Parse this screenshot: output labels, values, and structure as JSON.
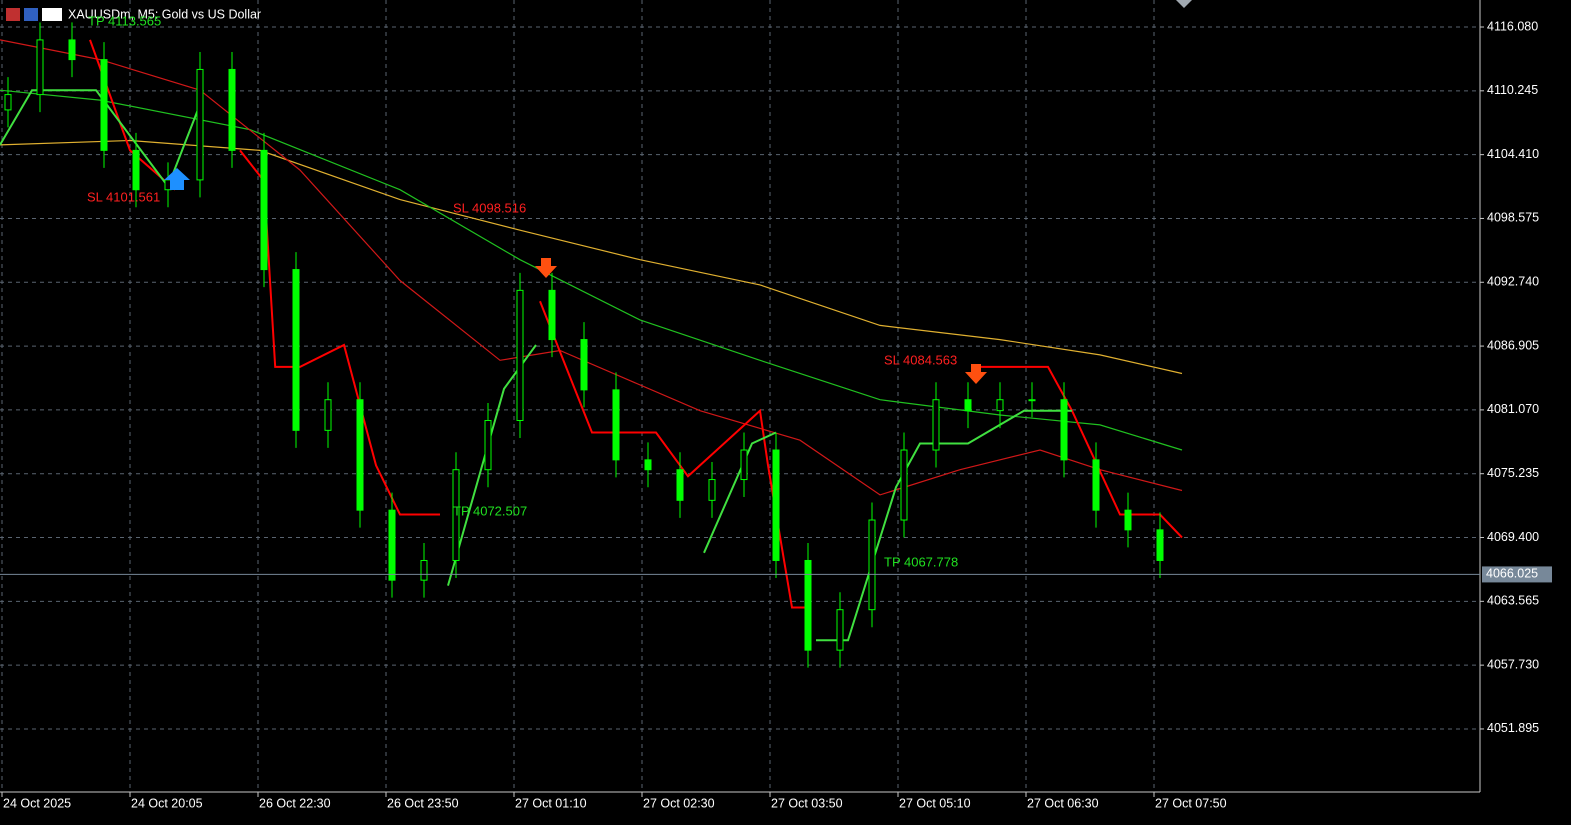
{
  "title": "XAUUSDm, M5:  Gold vs US Dollar",
  "chart_data": {
    "type": "candlestick",
    "x": [
      1,
      5,
      9,
      13,
      17,
      21,
      25,
      29,
      33,
      37,
      41,
      45,
      49,
      53,
      57,
      61,
      65,
      69,
      73,
      77,
      81,
      85,
      89,
      93,
      97,
      101,
      105,
      109,
      113,
      117,
      121,
      125,
      129,
      133,
      137,
      141,
      145
    ],
    "open": [
      4108.5,
      4109.9,
      4114.9,
      4113.1,
      4104.8,
      4101.2,
      4102.1,
      4112.2,
      4104.8,
      4093.9,
      4079.2,
      4082.0,
      4071.9,
      4065.5,
      4067.3,
      4075.6,
      4080.1,
      4092.0,
      4087.5,
      4082.9,
      4076.5,
      4075.6,
      4072.8,
      4074.7,
      4077.4,
      4067.3,
      4059.1,
      4062.8,
      4071.0,
      4077.4,
      4082.0,
      4081.0,
      4082.0,
      4082.0,
      4076.5,
      4071.9,
      4070.1
    ],
    "high": [
      4111.5,
      4116.5,
      4116.5,
      4114.7,
      4106.4,
      4103.7,
      4113.8,
      4113.8,
      4106.4,
      4095.5,
      4083.6,
      4083.6,
      4073.5,
      4068.9,
      4077.2,
      4081.7,
      4093.6,
      4093.6,
      4089.1,
      4084.5,
      4078.1,
      4077.2,
      4076.3,
      4079.0,
      4079.0,
      4068.9,
      4064.4,
      4072.6,
      4079.0,
      4083.6,
      4083.6,
      4083.6,
      4083.6,
      4083.6,
      4078.1,
      4073.5,
      4071.7
    ],
    "low": [
      4106.9,
      4108.3,
      4111.5,
      4103.2,
      4099.6,
      4099.6,
      4100.5,
      4103.2,
      4092.3,
      4077.6,
      4077.6,
      4070.3,
      4063.9,
      4063.9,
      4065.7,
      4074.0,
      4078.5,
      4085.9,
      4081.3,
      4074.9,
      4074.0,
      4071.2,
      4071.2,
      4073.1,
      4065.7,
      4057.5,
      4057.5,
      4061.2,
      4069.4,
      4075.8,
      4079.4,
      4079.4,
      4080.4,
      4074.9,
      4070.3,
      4068.5,
      4065.7
    ],
    "close": [
      4109.9,
      4114.9,
      4113.1,
      4104.8,
      4101.2,
      4102.1,
      4112.2,
      4104.8,
      4093.9,
      4079.2,
      4082.0,
      4071.9,
      4065.5,
      4067.3,
      4075.6,
      4080.1,
      4092.0,
      4087.5,
      4082.9,
      4076.5,
      4075.6,
      4072.8,
      4074.7,
      4077.4,
      4067.3,
      4059.1,
      4062.8,
      4071.0,
      4077.4,
      4082.0,
      4081.0,
      4082.0,
      4082.0,
      4076.5,
      4071.9,
      4070.1,
      4067.3
    ],
    "color": "#00ff00",
    "lines": [
      {
        "color": "#e0b030",
        "x": [
          0,
          16.25,
          32.5,
          50,
          65,
          80,
          95,
          110,
          125,
          137.5,
          147.75
        ],
        "values": [
          4105.3,
          4105.7,
          4104.8,
          4100.3,
          4097.5,
          4094.8,
          4092.5,
          4088.8,
          4087.5,
          4086.1,
          4084.4
        ]
      },
      {
        "color": "#20c020",
        "x": [
          0,
          12.5,
          31.25,
          50,
          65,
          80,
          95,
          110,
          125,
          137.5,
          147.75
        ],
        "values": [
          4110.3,
          4109.4,
          4106.7,
          4101.2,
          4094.8,
          4089.3,
          4085.6,
          4082.0,
          4080.6,
          4079.7,
          4077.4
        ]
      },
      {
        "color": "#d01818",
        "x": [
          0,
          12.5,
          25,
          37.5,
          50,
          62.5,
          70,
          87.5,
          100,
          110,
          120,
          130,
          137.5,
          147.75
        ],
        "values": [
          4114.9,
          4113.1,
          4110.3,
          4103.0,
          4092.9,
          4085.6,
          4086.5,
          4081.0,
          4078.3,
          4073.3,
          4075.6,
          4077.4,
          4075.6,
          4073.7
        ]
      },
      {
        "color": "#ff0000",
        "x": [
          11.25,
          16.25,
          21.9,
          25,
          30,
          33,
          34.4,
          37.5,
          43,
          47,
          50,
          55,
          60,
          67.5,
          74,
          82,
          86,
          95,
          96,
          99,
          101,
          110,
          122,
          131,
          134,
          140,
          145,
          147.75
        ],
        "values": [
          4114.9,
          4104.8,
          4101.2,
          null,
          4104.8,
          4102,
          4085,
          4085,
          4087,
          4076,
          4071.5,
          4071.5,
          null,
          4091,
          4079,
          4079,
          4075,
          4081,
          4076,
          4063,
          4063,
          null,
          4085,
          4085,
          4081,
          4071.5,
          4071.5,
          4069.4
        ]
      },
      {
        "color": "#40e040",
        "x": [
          0,
          4,
          12,
          21,
          25,
          40,
          56,
          63,
          67,
          80,
          88,
          94,
          97,
          100,
          102,
          106,
          112,
          115,
          121,
          128,
          134
        ],
        "values": [
          4105.3,
          4110.3,
          4110.3,
          4101.5,
          4109,
          null,
          4065,
          4083,
          4087,
          null,
          4068,
          4078,
          4079,
          null,
          4060,
          4060,
          4074,
          4078,
          4078,
          4081,
          4081
        ]
      }
    ],
    "xlim": [
      0,
      185
    ],
    "xticks": [
      {
        "value": 0.25,
        "label": "24 Oct 2025"
      },
      {
        "value": 16.25,
        "label": "24 Oct 20:05"
      },
      {
        "value": 32.25,
        "label": "26 Oct 22:30"
      },
      {
        "value": 48.25,
        "label": "26 Oct 23:50"
      },
      {
        "value": 64.25,
        "label": "27 Oct 01:10"
      },
      {
        "value": 80.25,
        "label": "27 Oct 02:30"
      },
      {
        "value": 96.25,
        "label": "27 Oct 03:50"
      },
      {
        "value": 112.25,
        "label": "27 Oct 05:10"
      },
      {
        "value": 128.25,
        "label": "27 Oct 06:30"
      },
      {
        "value": 144.25,
        "label": "27 Oct 07:50"
      }
    ],
    "ylim": [
      4046.13,
      4118.55
    ],
    "yticks": [
      {
        "value": 4116.08,
        "label": "4116.080"
      },
      4110.245,
      {
        "value": 4104.41,
        "label": "4104.410"
      },
      4098.575,
      {
        "value": 4092.74,
        "label": "4092.740"
      },
      4086.905,
      {
        "value": 4081.07,
        "label": "4081.070"
      },
      4075.235,
      {
        "value": 4069.4,
        "label": "4069.400"
      },
      4063.565,
      {
        "value": 4057.73,
        "label": "4057.730"
      },
      4051.895
    ],
    "current_price": 4066.025,
    "grid": true,
    "annotations": [
      "SL 4101.561",
      "SL 4098.516",
      "SL 4084.563",
      "TP 4072.507",
      "TP 4067.778",
      "TP 4113.565"
    ]
  }
}
